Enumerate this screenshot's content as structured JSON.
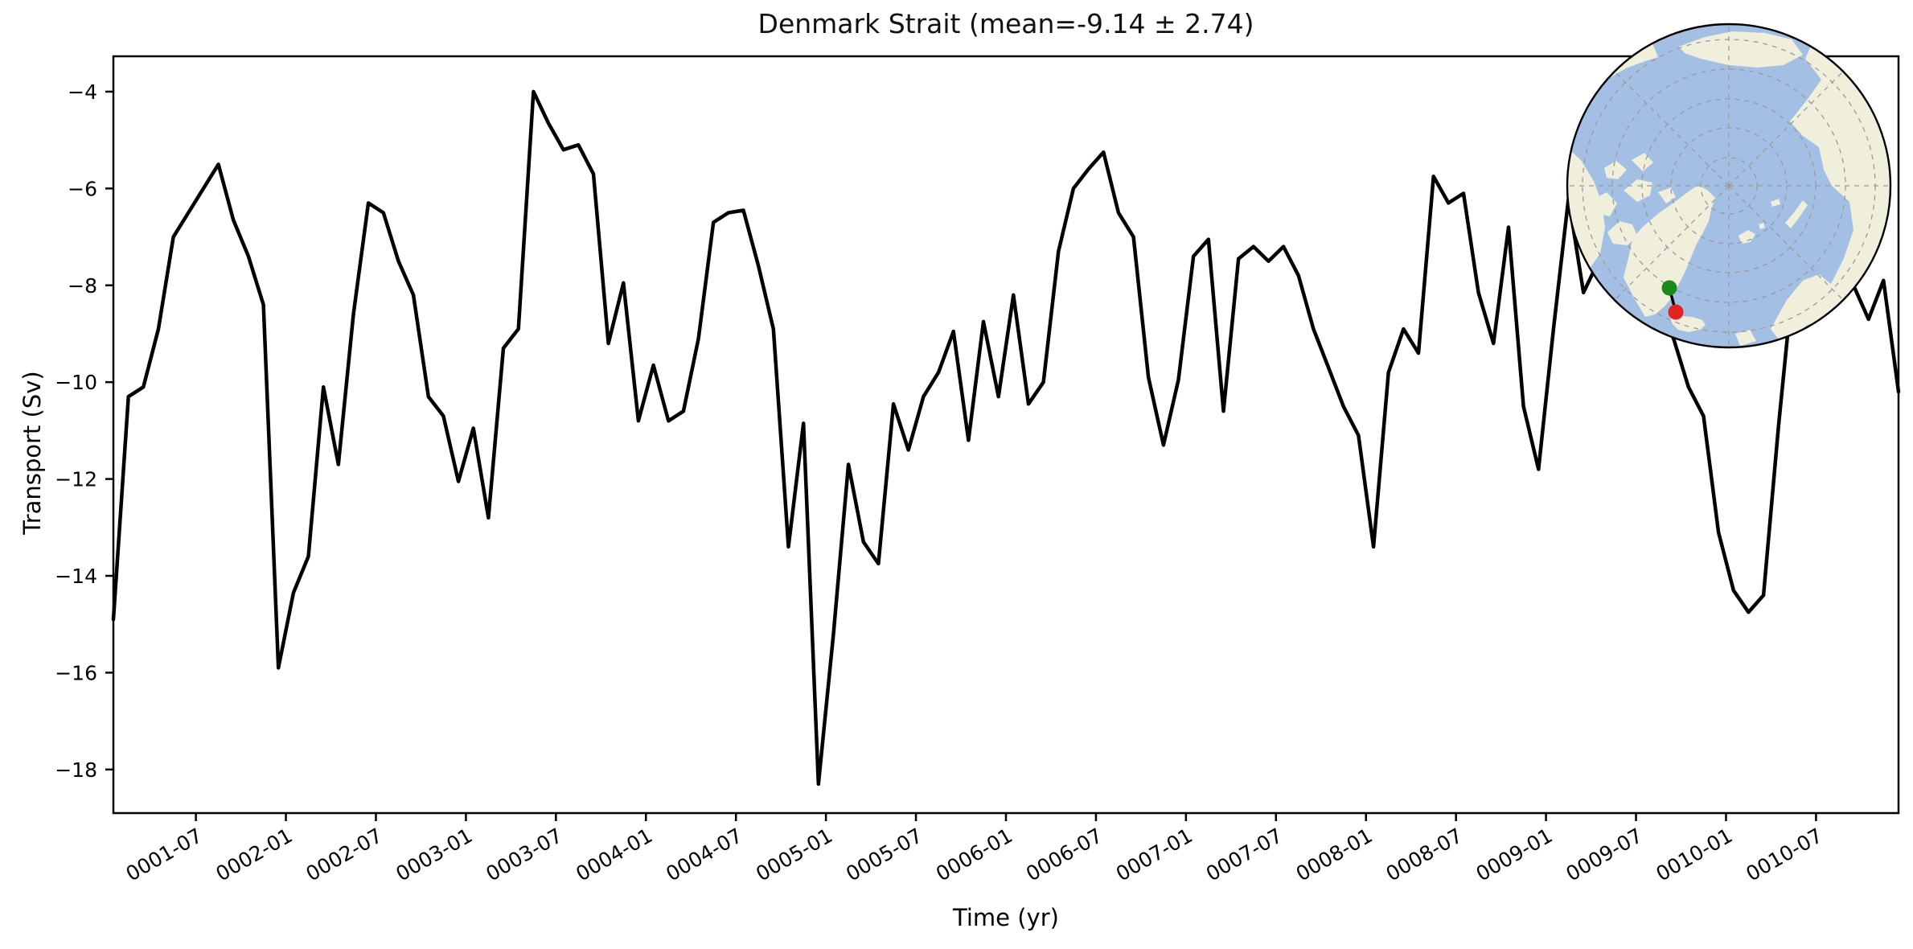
{
  "figure": {
    "title": "Denmark Strait (mean=-9.14 ± 2.74)"
  },
  "axes": {
    "xlabel": "Time (yr)",
    "ylabel": "Transport (Sv)",
    "x_tick_labels": [
      "0001-07",
      "0002-01",
      "0002-07",
      "0003-01",
      "0003-07",
      "0004-01",
      "0004-07",
      "0005-01",
      "0005-07",
      "0006-01",
      "0006-07",
      "0007-01",
      "0007-07",
      "0008-01",
      "0008-07",
      "0009-01",
      "0009-07",
      "0010-01",
      "0010-07"
    ],
    "y_tick_labels": [
      "−4",
      "−6",
      "−8",
      "−10",
      "−12",
      "−14",
      "−16",
      "−18"
    ],
    "y_tick_values": [
      -4,
      -6,
      -8,
      -10,
      -12,
      -14,
      -16,
      -18
    ]
  },
  "chart_data": {
    "type": "line",
    "title": "Denmark Strait (mean=-9.14 ± 2.74)",
    "xlabel": "Time (yr)",
    "ylabel": "Transport (Sv)",
    "grid": false,
    "legend": "none",
    "ylim": [
      -18.9,
      -3.27
    ],
    "x_start": "0001-01",
    "x_freq": "monthly",
    "n_points": 120,
    "x_first_tick": "0001-07",
    "x_tick_every_months": 6,
    "stats": {
      "mean": -9.14,
      "std": 2.74
    },
    "series": [
      {
        "name": "Denmark Strait volume transport",
        "color": "#000000",
        "linewidth": 4.5,
        "values": [
          -14.9,
          -10.3,
          -10.1,
          -8.9,
          -7.0,
          -6.5,
          -6.0,
          -5.5,
          -6.65,
          -7.4,
          -8.4,
          -15.9,
          -14.35,
          -13.6,
          -10.1,
          -11.7,
          -8.6,
          -6.3,
          -6.5,
          -7.5,
          -8.2,
          -10.3,
          -10.7,
          -12.05,
          -10.95,
          -12.8,
          -9.3,
          -8.9,
          -4.0,
          -4.65,
          -5.2,
          -5.1,
          -5.7,
          -9.2,
          -7.95,
          -10.8,
          -9.65,
          -10.8,
          -10.6,
          -9.1,
          -6.7,
          -6.5,
          -6.45,
          -7.6,
          -8.9,
          -13.4,
          -10.85,
          -18.3,
          -15.2,
          -11.7,
          -13.3,
          -13.75,
          -10.45,
          -11.4,
          -10.3,
          -9.8,
          -8.95,
          -11.2,
          -8.75,
          -10.3,
          -8.2,
          -10.45,
          -10.0,
          -7.3,
          -6.0,
          -5.6,
          -5.25,
          -6.5,
          -7.0,
          -9.9,
          -11.3,
          -9.95,
          -7.4,
          -7.05,
          -10.6,
          -7.45,
          -7.2,
          -7.5,
          -7.2,
          -7.8,
          -8.9,
          -9.7,
          -10.5,
          -11.1,
          -13.4,
          -9.8,
          -8.9,
          -9.4,
          -5.75,
          -6.3,
          -6.1,
          -8.15,
          -9.2,
          -6.8,
          -10.5,
          -11.8,
          -8.9,
          -6.2,
          -8.15,
          -7.5,
          -6.6,
          -6.9,
          -7.6,
          -8.4,
          -9.1,
          -10.1,
          -10.7,
          -13.1,
          -14.3,
          -14.75,
          -14.4,
          -10.9,
          -7.8,
          -6.9,
          -6.5,
          -7.2,
          -8.0,
          -8.7,
          -7.9,
          -10.2
        ]
      }
    ]
  },
  "inset_map": {
    "projection": "north_polar_stereographic",
    "ocean_color": "#a4bfe4",
    "land_color": "#efefdb",
    "graticule_color": "#9a9a9a",
    "border_color": "#000000",
    "section_line_color": "#000000",
    "markers": [
      {
        "name": "section-start",
        "color": "#1a8a1a"
      },
      {
        "name": "section-end",
        "color": "#e32322"
      }
    ]
  }
}
